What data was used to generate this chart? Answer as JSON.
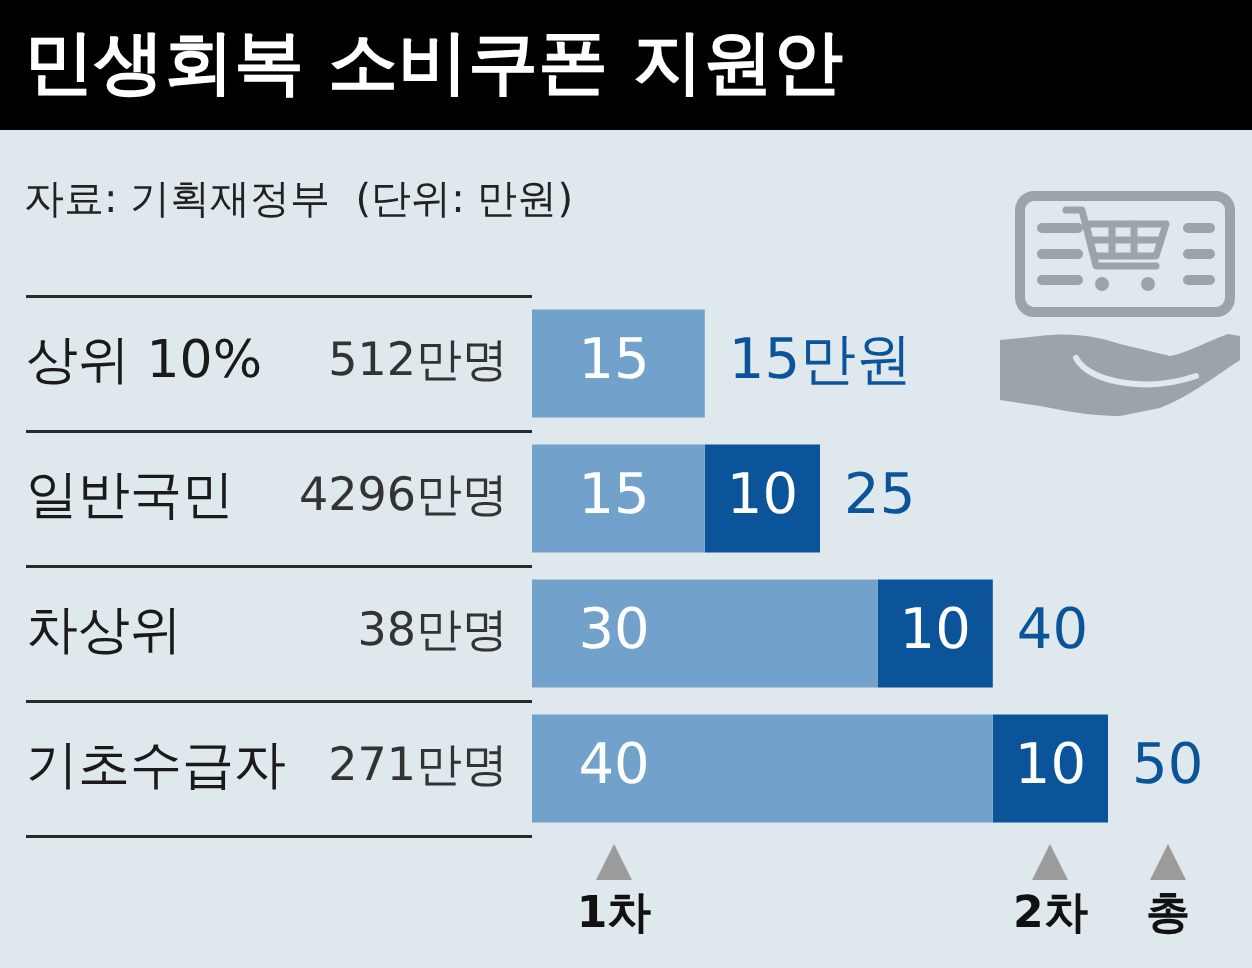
{
  "chart_data": {
    "type": "bar",
    "orientation": "horizontal",
    "stacked": true,
    "title": "민생회복 소비쿠폰 지원안",
    "subtitle": "자료: 기획재정부  (단위: 만원)",
    "categories": [
      "상위 10%",
      "일반국민",
      "차상위",
      "기초수급자"
    ],
    "series": [
      {
        "name": "1차",
        "color": "#72a1cc",
        "values": [
          15,
          15,
          30,
          40
        ]
      },
      {
        "name": "2차",
        "color": "#0b5499",
        "values": [
          null,
          10,
          10,
          10
        ]
      }
    ],
    "data_labels": true,
    "totals": [
      "15만원",
      "25",
      "40",
      "50"
    ],
    "annotations": [
      "512만명",
      "4296만명",
      "38만명",
      "271만명",
      "총"
    ],
    "legend": "bottom",
    "tick_labels": "y"
  }
}
